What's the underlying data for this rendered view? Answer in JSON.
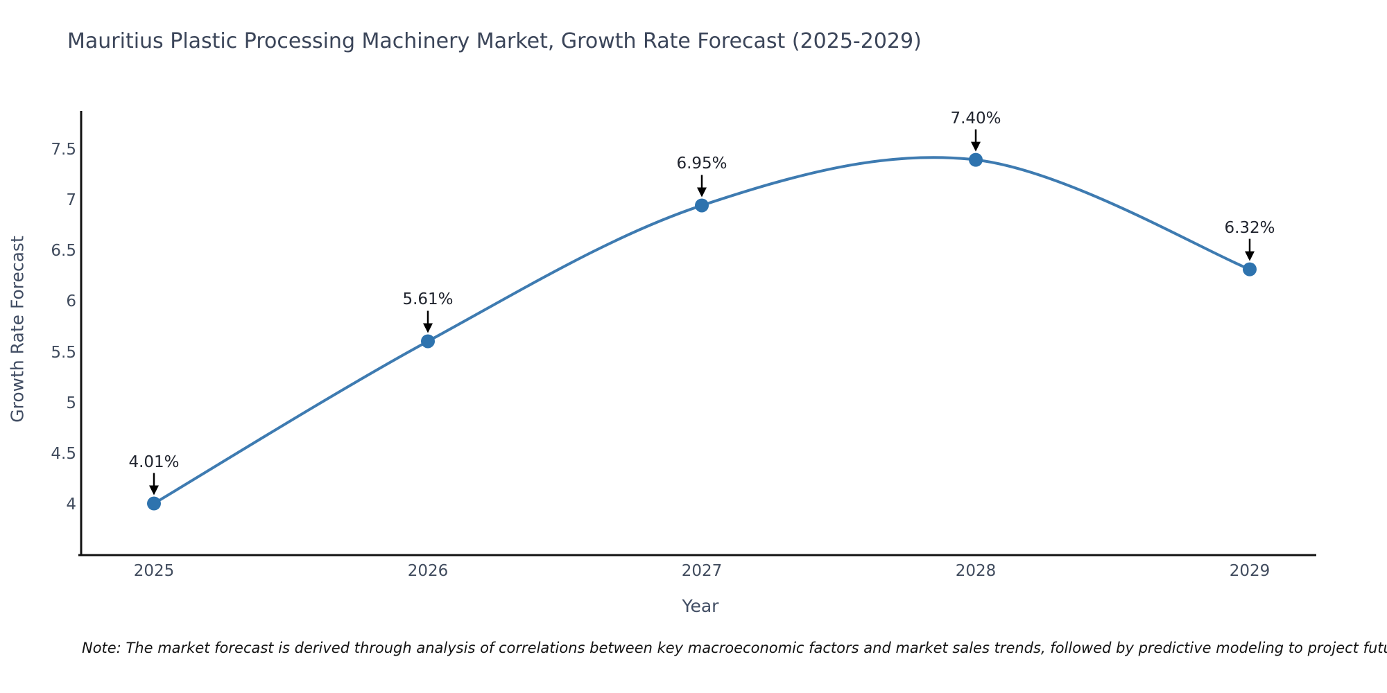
{
  "title": "Mauritius Plastic Processing Machinery Market, Growth Rate Forecast (2025-2029)",
  "note": "Note: The market forecast is derived through analysis of correlations between key macroeconomic factors and market sales trends, followed by predictive modeling to project future sales",
  "chart_data": {
    "type": "line",
    "title": "Mauritius Plastic Processing Machinery Market, Growth Rate Forecast (2025-2029)",
    "xlabel": "Year",
    "ylabel": "Growth Rate Forecast",
    "x": [
      "2025",
      "2026",
      "2027",
      "2028",
      "2029"
    ],
    "values": [
      4.01,
      5.61,
      6.95,
      7.4,
      6.32
    ],
    "point_labels": [
      "4.01%",
      "5.61%",
      "6.95%",
      "7.40%",
      "6.32%"
    ],
    "ytick_values": [
      7.5,
      7,
      6.5,
      6,
      5.5,
      5,
      4.5,
      4
    ],
    "ytick_labels": [
      "7.5",
      "7",
      "6.5",
      "6",
      "5.5",
      "5",
      "4.5",
      "4"
    ],
    "ylim": [
      3.5,
      7.9
    ],
    "grid": false,
    "legend": "none",
    "smooth_spline": true,
    "line_color": "#3e7bb1",
    "marker_color": "#2e73ae",
    "annotation_arrow_color": "#000000",
    "axis_color": "#111111",
    "title_color": "#3b4559",
    "tick_color": "#414c5e"
  }
}
